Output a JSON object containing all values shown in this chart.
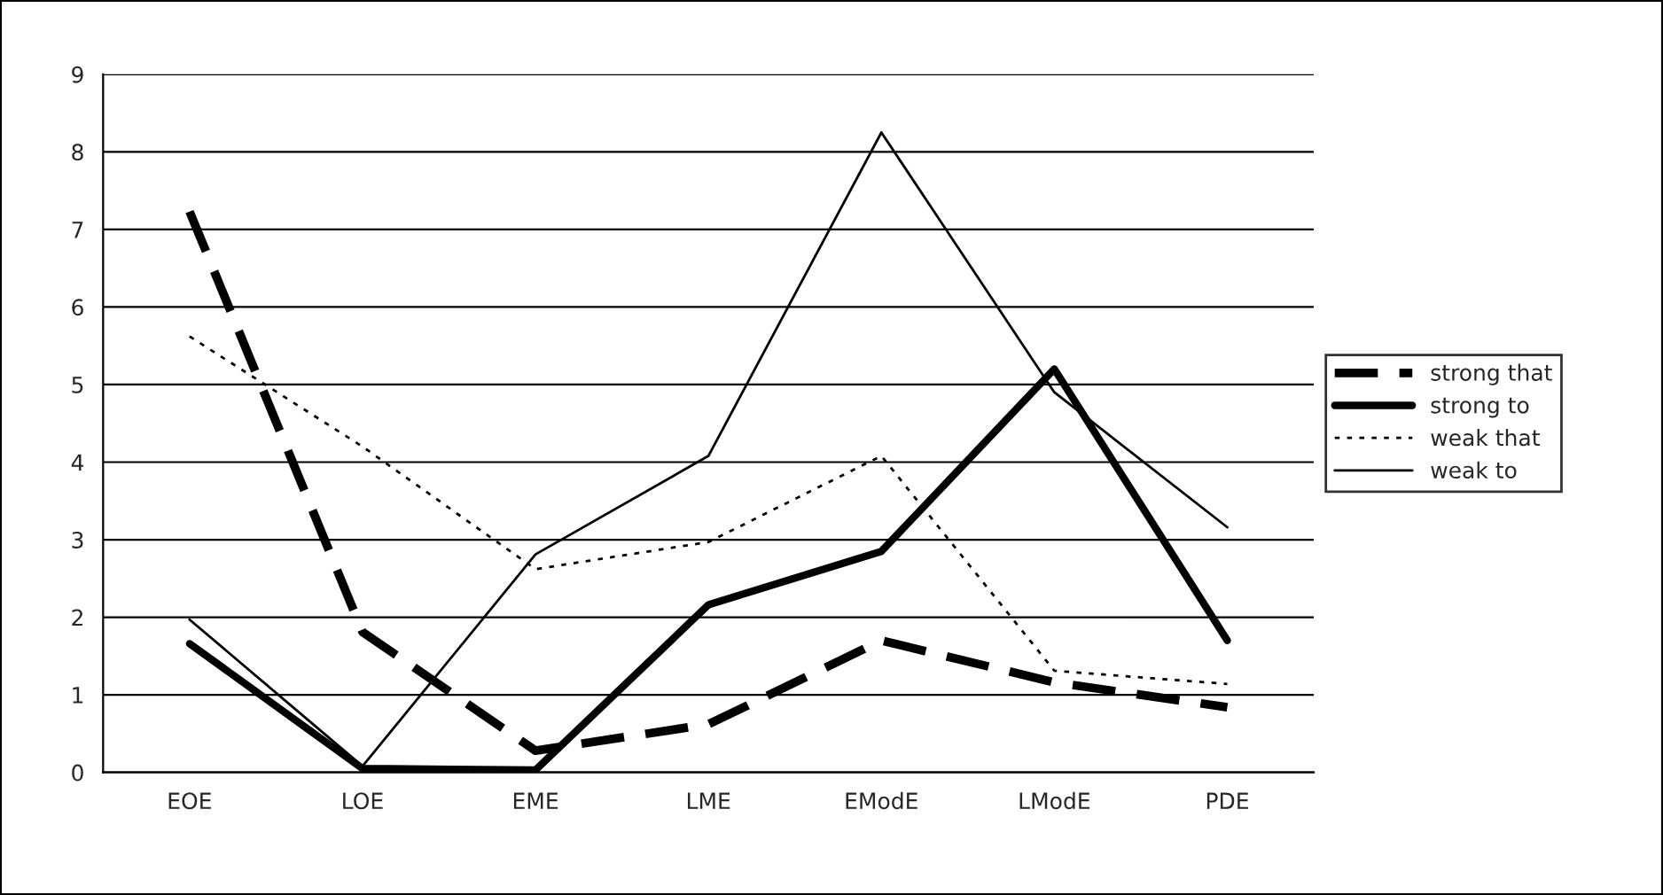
{
  "chart_data": {
    "type": "line",
    "categories": [
      "EOE",
      "LOE",
      "EME",
      "LME",
      "EModE",
      "LModE",
      "PDE"
    ],
    "series": [
      {
        "name": "strong that",
        "color": "#000000",
        "line_style": "dashed",
        "values": [
          7.23,
          1.81,
          0.28,
          0.62,
          1.7,
          1.16,
          0.84
        ]
      },
      {
        "name": "strong to",
        "color": "#000000",
        "line_style": "solid",
        "values": [
          1.66,
          0.05,
          0.03,
          2.16,
          2.85,
          5.2,
          1.7
        ]
      },
      {
        "name": "weak that",
        "color": "#000000",
        "line_style": "dotted",
        "values": [
          5.62,
          4.2,
          2.62,
          2.97,
          4.08,
          1.31,
          1.14
        ]
      },
      {
        "name": "weak to",
        "color": "#000000",
        "line_style": "solid",
        "values": [
          1.97,
          0.08,
          2.81,
          4.08,
          8.25,
          4.9,
          3.16
        ]
      }
    ],
    "ylim": [
      0,
      9
    ],
    "yticks": [
      0,
      1,
      2,
      3,
      4,
      5,
      6,
      7,
      8,
      9
    ],
    "grid": "y",
    "legend": "right",
    "marker": "none"
  }
}
